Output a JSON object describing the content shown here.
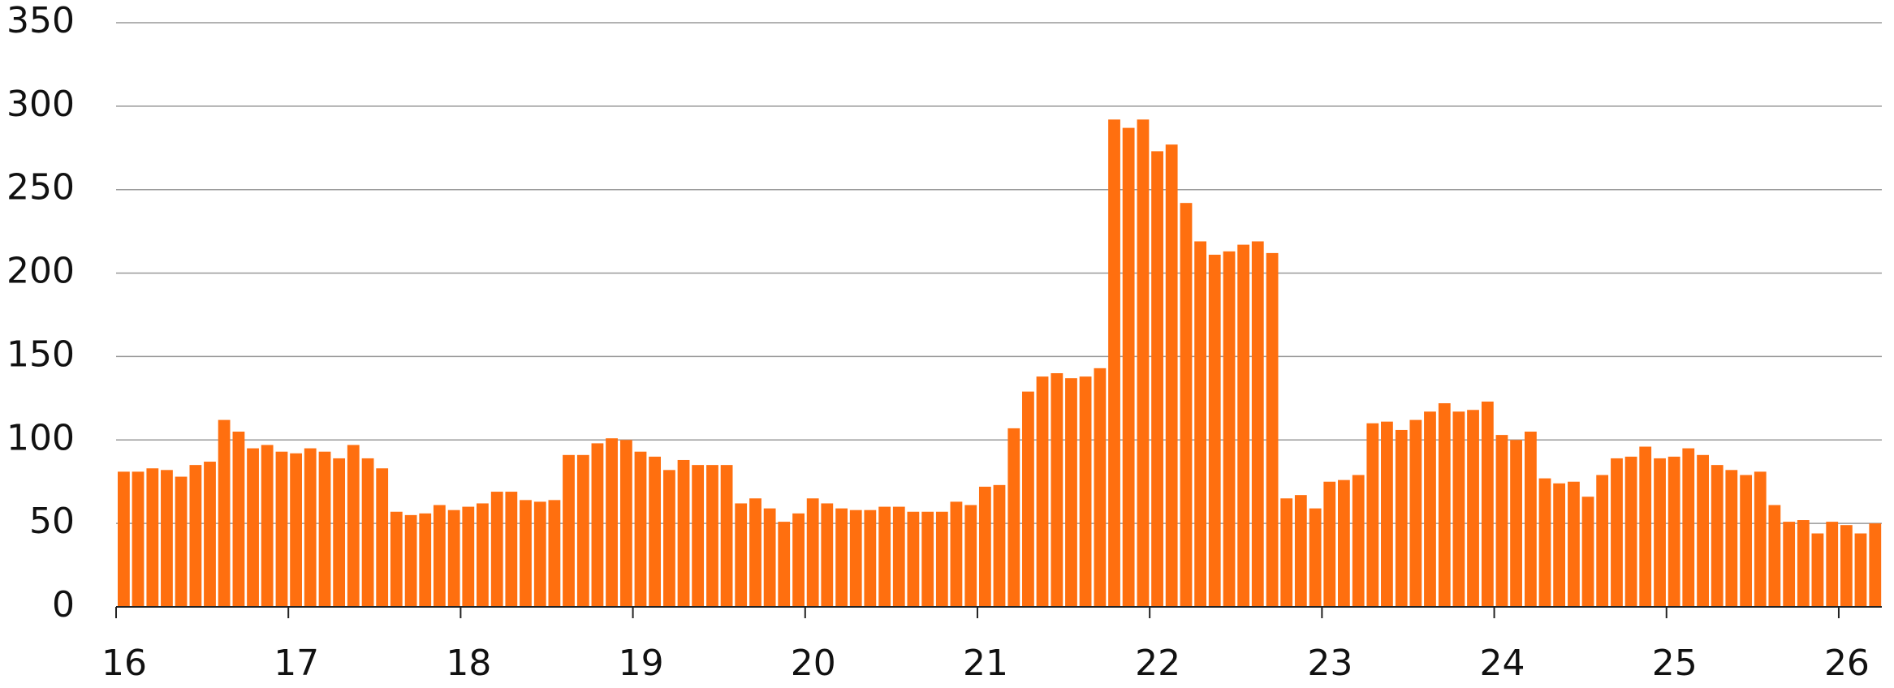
{
  "chart_data": {
    "type": "bar",
    "x": [
      16,
      16.083,
      16.167,
      16.25,
      16.333,
      16.417,
      16.5,
      16.583,
      16.667,
      16.75,
      16.833,
      16.917,
      17,
      17.083,
      17.167,
      17.25,
      17.333,
      17.417,
      17.5,
      17.583,
      17.667,
      17.75,
      17.833,
      17.917,
      18,
      18.083,
      18.167,
      18.25,
      18.333,
      18.417,
      18.5,
      18.583,
      18.667,
      18.75,
      18.833,
      18.917,
      19,
      19.083,
      19.167,
      19.25,
      19.333,
      19.417,
      19.5,
      19.583,
      19.667,
      19.75,
      19.833,
      19.917,
      20,
      20.083,
      20.167,
      20.25,
      20.333,
      20.417,
      20.5,
      20.583,
      20.667,
      20.75,
      20.833,
      20.917,
      21,
      21.083,
      21.167,
      21.25,
      21.333,
      21.417,
      21.5,
      21.583,
      21.667,
      21.75,
      21.833,
      21.917,
      22,
      22.083,
      22.167,
      22.25,
      22.333,
      22.417,
      22.5,
      22.583,
      22.667,
      22.75,
      22.833,
      22.917,
      23,
      23.083,
      23.167,
      23.25,
      23.333,
      23.417,
      23.5,
      23.583,
      23.667,
      23.75,
      23.833,
      23.917,
      24,
      24.083,
      24.167,
      24.25,
      24.333,
      24.417,
      24.5,
      24.583,
      24.667,
      24.75,
      24.833,
      24.917,
      25,
      25.083,
      25.167,
      25.25,
      25.333,
      25.417,
      25.5,
      25.583,
      25.667,
      25.75,
      25.833,
      25.917,
      26,
      26.083,
      26.167
    ],
    "values": [
      81,
      81,
      83,
      82,
      78,
      85,
      87,
      112,
      105,
      95,
      97,
      93,
      92,
      95,
      93,
      89,
      97,
      89,
      83,
      57,
      55,
      56,
      61,
      58,
      60,
      62,
      69,
      69,
      64,
      63,
      64,
      91,
      91,
      98,
      101,
      100,
      93,
      90,
      82,
      88,
      85,
      85,
      85,
      62,
      65,
      59,
      51,
      56,
      65,
      62,
      59,
      58,
      58,
      60,
      60,
      57,
      57,
      57,
      63,
      61,
      72,
      73,
      107,
      129,
      138,
      140,
      137,
      138,
      143,
      292,
      287,
      292,
      273,
      277,
      242,
      219,
      211,
      213,
      217,
      219,
      212,
      65,
      67,
      59,
      75,
      76,
      79,
      110,
      111,
      106,
      112,
      117,
      122,
      117,
      118,
      123,
      103,
      100,
      105,
      77,
      74,
      75,
      66,
      79,
      89,
      90,
      96,
      89,
      90,
      95,
      91,
      85,
      82,
      79,
      81,
      61,
      51,
      52,
      44,
      51,
      49,
      44,
      50
    ],
    "color": "#ff6f0f",
    "xlim": [
      16,
      26.25
    ],
    "xticks": [
      16,
      17,
      18,
      19,
      20,
      21,
      22,
      23,
      24,
      25,
      26
    ],
    "ylim": [
      0,
      350
    ],
    "yticks": [
      0,
      50,
      100,
      150,
      200,
      250,
      300,
      350
    ],
    "grid": true
  }
}
